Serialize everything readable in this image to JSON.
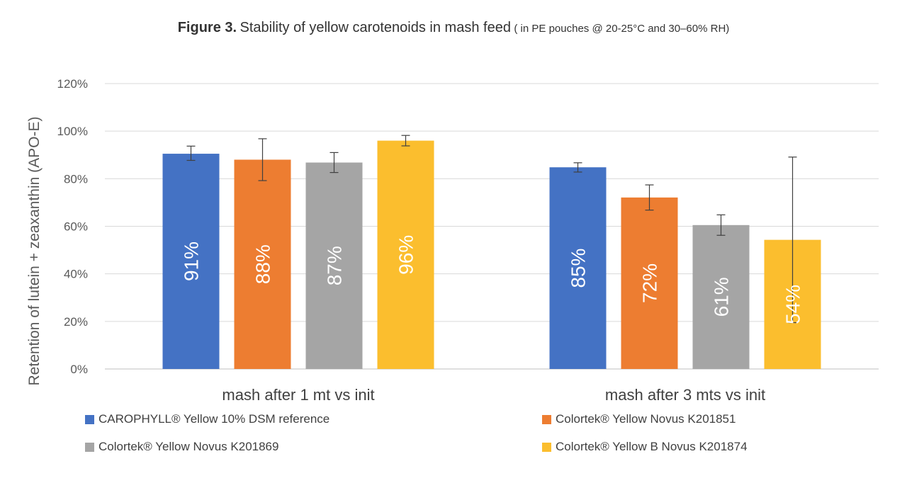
{
  "title": {
    "figure": "Figure 3.",
    "main": "Stability of yellow carotenoids in mash feed",
    "sub": "( in PE pouches @ 20-25°C and 30–60% RH)"
  },
  "chart_data": {
    "type": "bar",
    "title": "Figure 3. Stability of yellow carotenoids in mash feed ( in PE pouches @ 20-25°C and 30–60% RH)",
    "ylabel": "Retention of lutein + zeaxanthin (APO-E)",
    "xlabel": "",
    "ylim": [
      0,
      1.2
    ],
    "yticks": [
      0,
      0.2,
      0.4,
      0.6,
      0.8,
      1.0,
      1.2
    ],
    "ytick_labels": [
      "0%",
      "20%",
      "40%",
      "60%",
      "80%",
      "100%",
      "120%"
    ],
    "grid": true,
    "legend_position": "bottom",
    "categories": [
      "mash after 1 mt vs init",
      "mash after 3 mts vs init"
    ],
    "series": [
      {
        "name": "CAROPHYLL® Yellow 10% DSM reference",
        "color": "#4472C4",
        "values": [
          0.905,
          0.848
        ],
        "labels": [
          "91%",
          "85%"
        ],
        "err_low": [
          0.877,
          0.828
        ],
        "err_high": [
          0.937,
          0.867
        ]
      },
      {
        "name": "Colortek® Yellow Novus K201851",
        "color": "#ED7D31",
        "values": [
          0.88,
          0.721
        ],
        "labels": [
          "88%",
          "72%"
        ],
        "err_low": [
          0.792,
          0.668
        ],
        "err_high": [
          0.968,
          0.774
        ]
      },
      {
        "name": "Colortek® Yellow Novus K201869",
        "color": "#A5A5A5",
        "values": [
          0.868,
          0.605
        ],
        "labels": [
          "87%",
          "61%"
        ],
        "err_low": [
          0.826,
          0.562
        ],
        "err_high": [
          0.91,
          0.648
        ]
      },
      {
        "name": "Colortek® Yellow B Novus K201874",
        "color": "#FBBE2E",
        "values": [
          0.96,
          0.543
        ],
        "labels": [
          "96%",
          "54%"
        ],
        "err_low": [
          0.938,
          0.195
        ],
        "err_high": [
          0.982,
          0.891
        ]
      }
    ]
  }
}
